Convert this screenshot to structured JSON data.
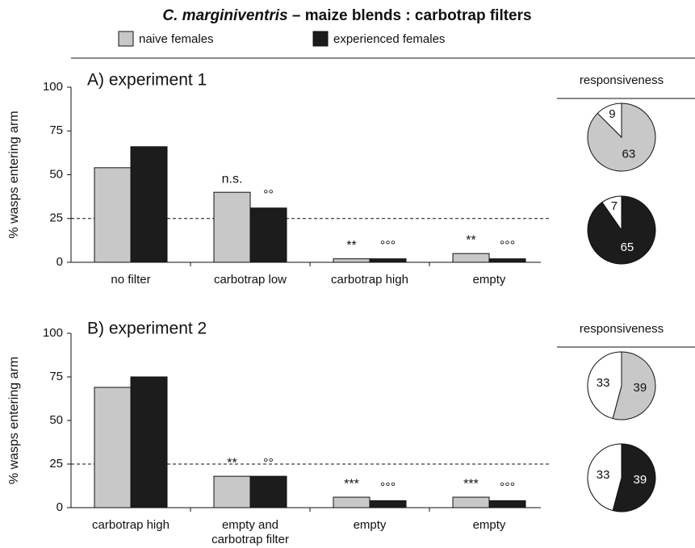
{
  "title": {
    "species": "C. marginiventris",
    "text": "– maize blends : carbotrap filters"
  },
  "chart_data": [
    {
      "type": "bar",
      "title": "A) experiment 1",
      "ylabel": "% wasps entering arm",
      "categories": [
        "no filter",
        "carbotrap low",
        "carbotrap high",
        "empty"
      ],
      "series": [
        {
          "name": "naive females",
          "color": "#c8c8c8",
          "values": [
            54,
            40,
            2,
            5
          ],
          "significance": [
            null,
            "n.s.",
            "**",
            "**"
          ]
        },
        {
          "name": "experienced females",
          "color": "#1c1c1c",
          "values": [
            66,
            31,
            2,
            2
          ],
          "significance": [
            null,
            "°°",
            "°°°",
            "°°°"
          ]
        }
      ],
      "ylim": [
        0,
        100
      ],
      "yticks": [
        0,
        25,
        50,
        75,
        100
      ],
      "reference_line": 25
    },
    {
      "type": "pie",
      "title": "responsiveness",
      "values": [
        63,
        9
      ],
      "colors": [
        "#c8c8c8",
        "#ffffff"
      ]
    },
    {
      "type": "pie",
      "values": [
        65,
        7
      ],
      "colors": [
        "#1c1c1c",
        "#ffffff"
      ]
    },
    {
      "type": "bar",
      "title": "B) experiment 2",
      "ylabel": "% wasps entering arm",
      "categories": [
        "carbotrap high",
        "empty and carbotrap filter",
        "empty",
        "empty"
      ],
      "series": [
        {
          "color": "#c8c8c8",
          "values": [
            69,
            18,
            6,
            6
          ],
          "significance": [
            null,
            "**",
            "***",
            "***"
          ]
        },
        {
          "color": "#1c1c1c",
          "values": [
            75,
            18,
            4,
            4
          ],
          "significance": [
            null,
            "°°",
            "°°°",
            "°°°"
          ]
        }
      ],
      "ylim": [
        0,
        100
      ],
      "yticks": [
        0,
        25,
        50,
        75,
        100
      ],
      "reference_line": 25
    },
    {
      "type": "pie",
      "title": "responsiveness",
      "values": [
        39,
        33
      ],
      "colors": [
        "#c8c8c8",
        "#ffffff"
      ]
    },
    {
      "type": "pie",
      "values": [
        39,
        33
      ],
      "colors": [
        "#1c1c1c",
        "#ffffff"
      ]
    }
  ]
}
